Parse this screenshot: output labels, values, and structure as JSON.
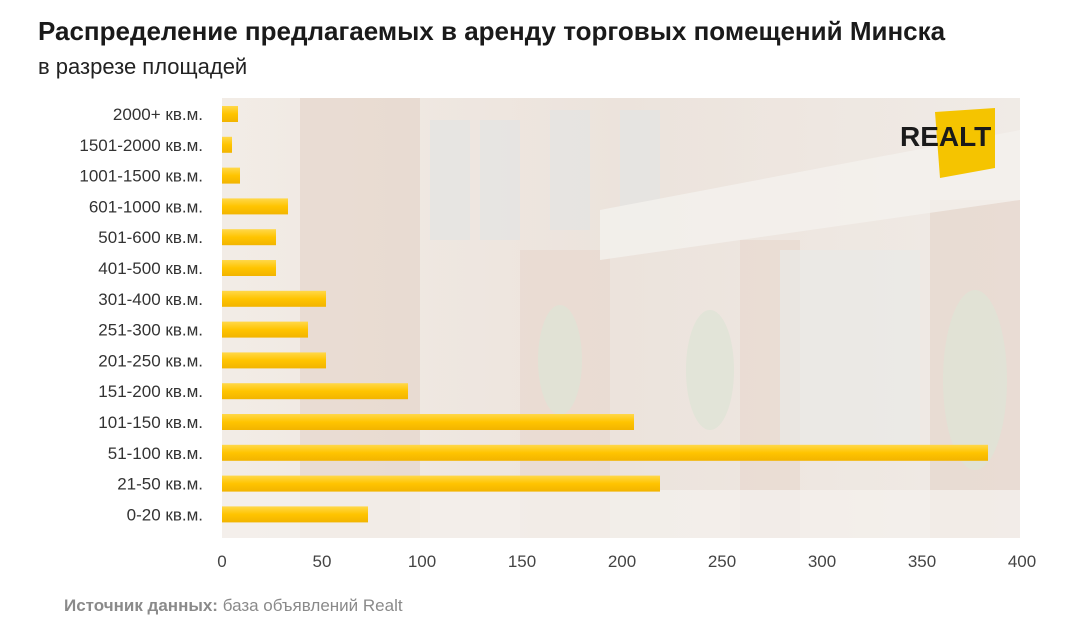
{
  "header": {
    "title": "Распределение предлагаемых в аренду торговых помещений Минска",
    "subtitle": "в разрезе площадей"
  },
  "footer": {
    "source_label": "Источник данных:",
    "source_text": "база объявлений Realt"
  },
  "logo": {
    "text": "REALT",
    "color": "#f5c400"
  },
  "colors": {
    "bar": "#ffc400",
    "bar_highlight": "#ffd84a",
    "background_tint": "#efe8e2"
  },
  "chart_data": {
    "type": "bar",
    "orientation": "horizontal",
    "title": "Распределение предлагаемых в аренду торговых помещений Минска",
    "subtitle": "в разрезе площадей",
    "categories": [
      "2000+ кв.м.",
      "1501-2000 кв.м.",
      "1001-1500 кв.м.",
      "601-1000 кв.м.",
      "501-600 кв.м.",
      "401-500 кв.м.",
      "301-400 кв.м.",
      "251-300 кв.м.",
      "201-250 кв.м.",
      "151-200 кв.м.",
      "101-150 кв.м.",
      "51-100 кв.м.",
      "21-50 кв.м.",
      "0-20 кв.м."
    ],
    "values": [
      8,
      5,
      9,
      33,
      27,
      27,
      52,
      43,
      52,
      93,
      206,
      383,
      219,
      73
    ],
    "xlim": [
      0,
      400
    ],
    "xticks": [
      0,
      50,
      100,
      150,
      200,
      250,
      300,
      350,
      400
    ],
    "xlabel": "",
    "ylabel": "",
    "grid": false,
    "legend": "none"
  }
}
